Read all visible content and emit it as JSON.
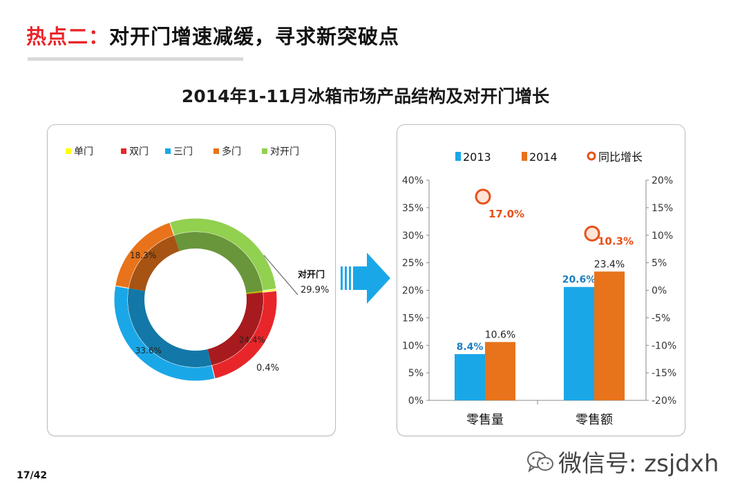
{
  "slide": {
    "title_prefix": "热点二：",
    "title_main": "对开门增速减缓，寻求新突破点",
    "subtitle": "2014年1-11月冰箱市场产品结构及对开门增长",
    "page_number": "17/42",
    "wechat_text": "微信号: zsjdxh"
  },
  "colors": {
    "title_red": "#e8262a",
    "single": "#ffff00",
    "double": "#e8262a",
    "triple": "#1aa7e8",
    "multi": "#e8731a",
    "french": "#92d050",
    "bar2013": "#1aa7e8",
    "bar2014": "#e8731a",
    "growth": "#e8501a"
  },
  "chart_data": [
    {
      "type": "pie",
      "variant": "donut",
      "title": "",
      "legend_position": "top",
      "start_segment": "对开门",
      "label_suffix": "%",
      "slices": [
        {
          "name": "单门",
          "value": 0.4,
          "label": "0.4%",
          "color_key": "single"
        },
        {
          "name": "双门",
          "value": 24.4,
          "label": "24.4%",
          "color_key": "double"
        },
        {
          "name": "三门",
          "value": 33.6,
          "label": "33.6%",
          "color_key": "triple"
        },
        {
          "name": "多门",
          "value": 18.3,
          "label": "18.3%",
          "color_key": "multi"
        },
        {
          "name": "对开门",
          "value": 29.9,
          "label": "29.9%",
          "color_key": "french"
        }
      ],
      "legend": [
        "单门",
        "双门",
        "三门",
        "多门",
        "对开门"
      ],
      "callout": {
        "name": "对开门",
        "label": "29.9%"
      }
    },
    {
      "type": "bar",
      "title": "",
      "legend_position": "top",
      "categories": [
        "零售量",
        "零售额"
      ],
      "series": [
        {
          "name": "2013",
          "values": [
            8.4,
            20.6
          ],
          "labels": [
            "8.4%",
            "20.6%"
          ],
          "color_key": "bar2013"
        },
        {
          "name": "2014",
          "values": [
            10.6,
            23.4
          ],
          "labels": [
            "10.6%",
            "23.4%"
          ],
          "color_key": "bar2014"
        }
      ],
      "secondary_series": {
        "name": "同比增长",
        "type": "scatter",
        "values": [
          17.0,
          10.3
        ],
        "labels": [
          "17.0%",
          "10.3%"
        ],
        "color_key": "growth"
      },
      "ylim": [
        0,
        40
      ],
      "y_ticks": [
        "0%",
        "5%",
        "10%",
        "15%",
        "20%",
        "25%",
        "30%",
        "35%",
        "40%"
      ],
      "y2lim": [
        -20,
        20
      ],
      "y2_ticks": [
        "-20%",
        "-15%",
        "-10%",
        "-5%",
        "0%",
        "5%",
        "10%",
        "15%",
        "20%"
      ],
      "grid": false
    }
  ]
}
